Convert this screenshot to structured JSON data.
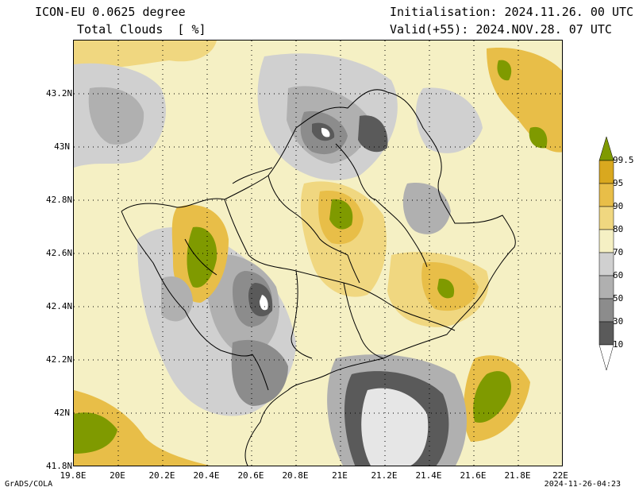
{
  "header": {
    "model": "ICON-EU 0.0625 degree",
    "variable": "Total Clouds  [ %]",
    "init": "Initialisation: 2024.11.26. 00 UTC",
    "valid": "Valid(+55): 2024.NOV.28. 07 UTC"
  },
  "axes": {
    "lat_ticks": [
      "43.2N",
      "43N",
      "42.8N",
      "42.6N",
      "42.4N",
      "42.2N",
      "42N",
      "41.8N"
    ],
    "lon_ticks": [
      "19.8E",
      "20E",
      "20.2E",
      "20.4E",
      "20.6E",
      "20.8E",
      "21E",
      "21.2E",
      "21.4E",
      "21.6E",
      "21.8E",
      "22E"
    ]
  },
  "legend": {
    "labels": [
      "99.5",
      "95",
      "90",
      "80",
      "70",
      "60",
      "50",
      "30",
      "10"
    ],
    "colors": [
      "#7f9a00",
      "#d9a81f",
      "#e8be48",
      "#f0d780",
      "#f5f0c4",
      "#d0d0d0",
      "#b0b0b0",
      "#8c8c8c",
      "#5a5a5a",
      "#ffffff"
    ]
  },
  "footer": {
    "left": "GrADS/COLA",
    "right": "2024-11-26-04:23"
  }
}
